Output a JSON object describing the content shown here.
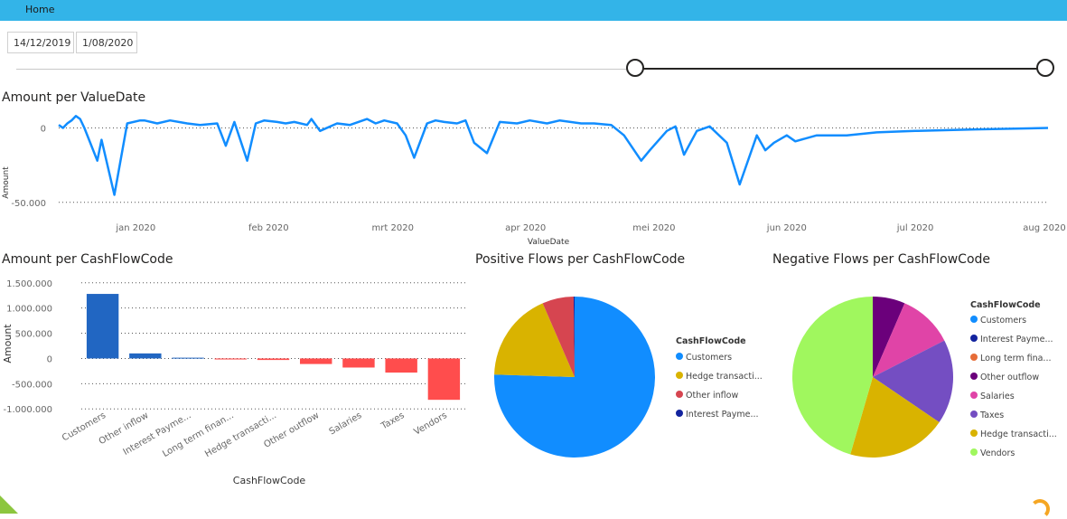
{
  "tabs": {
    "home": "Home"
  },
  "filters": {
    "date_start": "14/12/2019",
    "date_end": "1/08/2020"
  },
  "colors": {
    "tabbar": "#33b4e8",
    "line": "#118dff",
    "bar_positive": "#2166c2",
    "bar_negative": "#ff4d4d",
    "customers": "#118dff",
    "interest_payments": "#12239e",
    "long_term_financing": "#e66c37",
    "other_outflow": "#6b007b",
    "salaries": "#e044a7",
    "taxes": "#744ec2",
    "hedge_transactions": "#d9b300",
    "other_inflow": "#d64550",
    "vendors": "#a0f75e"
  },
  "chart_data": [
    {
      "type": "line",
      "title": "Amount per ValueDate",
      "xlabel": "ValueDate",
      "ylabel": "Amount",
      "x_ticks": [
        "jan 2020",
        "feb 2020",
        "mrt 2020",
        "apr 2020",
        "mei 2020",
        "jun 2020",
        "jul 2020",
        "aug 2020"
      ],
      "y_ticks": [
        "0",
        "-50.000"
      ],
      "ylim": [
        -55000,
        10000
      ],
      "series": [
        {
          "x": [
            "2019-12-14",
            "2019-12-15",
            "2019-12-16",
            "2019-12-17",
            "2019-12-18",
            "2019-12-19",
            "2019-12-20",
            "2019-12-23",
            "2019-12-24",
            "2019-12-27",
            "2019-12-30",
            "2020-01-02",
            "2020-01-03",
            "2020-01-06",
            "2020-01-09",
            "2020-01-13",
            "2020-01-16",
            "2020-01-20",
            "2020-01-22",
            "2020-01-24",
            "2020-01-27",
            "2020-01-29",
            "2020-01-31",
            "2020-02-03",
            "2020-02-05",
            "2020-02-07",
            "2020-02-10",
            "2020-02-11",
            "2020-02-13",
            "2020-02-17",
            "2020-02-20",
            "2020-02-24",
            "2020-02-26",
            "2020-02-28",
            "2020-03-02",
            "2020-03-04",
            "2020-03-06",
            "2020-03-09",
            "2020-03-11",
            "2020-03-13",
            "2020-03-16",
            "2020-03-18",
            "2020-03-20",
            "2020-03-23",
            "2020-03-26",
            "2020-03-30",
            "2020-04-02",
            "2020-04-06",
            "2020-04-09",
            "2020-04-14",
            "2020-04-17",
            "2020-04-21",
            "2020-04-24",
            "2020-04-28",
            "2020-04-30",
            "2020-05-04",
            "2020-05-06",
            "2020-05-08",
            "2020-05-11",
            "2020-05-14",
            "2020-05-18",
            "2020-05-21",
            "2020-05-25",
            "2020-05-27",
            "2020-05-29",
            "2020-06-01",
            "2020-06-03",
            "2020-06-08",
            "2020-06-15",
            "2020-06-22",
            "2020-07-01",
            "2020-07-15",
            "2020-08-01"
          ],
          "y": [
            2000,
            0,
            3000,
            5000,
            8000,
            6000,
            0,
            -22000,
            -8000,
            -45000,
            3000,
            5000,
            5000,
            3000,
            5000,
            3000,
            2000,
            3000,
            -12000,
            4000,
            -22000,
            3000,
            5000,
            4000,
            3000,
            4000,
            2000,
            6000,
            -2000,
            3000,
            2000,
            6000,
            3000,
            5000,
            3000,
            -5000,
            -20000,
            3000,
            5000,
            4000,
            3000,
            5000,
            -10000,
            -17000,
            4000,
            3000,
            5000,
            3000,
            5000,
            3000,
            3000,
            2000,
            -5000,
            -22000,
            -15000,
            -2000,
            1000,
            -18000,
            -2000,
            1000,
            -10000,
            -38000,
            -5000,
            -15000,
            -10000,
            -5000,
            -9000,
            -5000,
            -5000,
            -3000,
            -2000,
            -1000,
            0
          ]
        }
      ]
    },
    {
      "type": "bar",
      "title": "Amount per CashFlowCode",
      "xlabel": "CashFlowCode",
      "ylabel": "Amount",
      "categories": [
        "Customers",
        "Other inflow",
        "Interest Payme...",
        "Long term finan...",
        "Hedge transacti...",
        "Other outflow",
        "Salaries",
        "Taxes",
        "Vendors"
      ],
      "values": [
        1280000,
        100000,
        15000,
        -20000,
        -30000,
        -110000,
        -180000,
        -280000,
        -820000
      ],
      "y_ticks": [
        "1.500.000",
        "1.000.000",
        "500.000",
        "0",
        "-500.000",
        "-1.000.000"
      ],
      "ylim": [
        -1050000,
        1550000
      ]
    },
    {
      "type": "pie",
      "title": "Positive Flows per CashFlowCode",
      "legend_title": "CashFlowCode",
      "legend": [
        "Customers",
        "Hedge transacti...",
        "Other inflow",
        "Interest Payme..."
      ],
      "slices": [
        {
          "name": "Customers",
          "value": 75.5,
          "color_key": "customers"
        },
        {
          "name": "Hedge transacti...",
          "value": 18.0,
          "color_key": "hedge_transactions"
        },
        {
          "name": "Other inflow",
          "value": 6.3,
          "color_key": "other_inflow"
        },
        {
          "name": "Interest Payme...",
          "value": 0.2,
          "color_key": "interest_payments"
        }
      ]
    },
    {
      "type": "pie",
      "title": "Negative Flows per CashFlowCode",
      "legend_title": "CashFlowCode",
      "legend": [
        "Customers",
        "Interest Payme...",
        "Long term fina...",
        "Other outflow",
        "Salaries",
        "Taxes",
        "Hedge transacti...",
        "Vendors"
      ],
      "slices": [
        {
          "name": "Other outflow",
          "value": 6.5,
          "color_key": "other_outflow"
        },
        {
          "name": "Salaries",
          "value": 11.0,
          "color_key": "salaries"
        },
        {
          "name": "Taxes",
          "value": 17.0,
          "color_key": "taxes"
        },
        {
          "name": "Hedge transacti...",
          "value": 20.0,
          "color_key": "hedge_transactions"
        },
        {
          "name": "Vendors",
          "value": 45.5,
          "color_key": "vendors"
        }
      ]
    }
  ]
}
